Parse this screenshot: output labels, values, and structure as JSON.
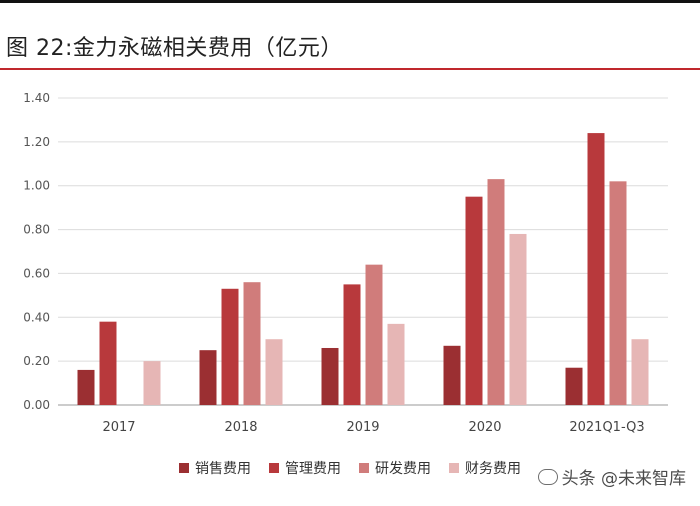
{
  "title": "图 22:金力永磁相关费用（亿元）",
  "watermark": "头条 @未来智库",
  "chart_data": {
    "type": "bar",
    "categories": [
      "2017",
      "2018",
      "2019",
      "2020",
      "2021Q1-Q3"
    ],
    "series": [
      {
        "name": "销售费用",
        "color": "#9b2f32",
        "values": [
          0.16,
          0.25,
          0.26,
          0.27,
          0.17
        ]
      },
      {
        "name": "管理费用",
        "color": "#b8393c",
        "values": [
          0.38,
          0.53,
          0.55,
          0.95,
          1.24
        ]
      },
      {
        "name": "研发费用",
        "color": "#d07c7b",
        "values": [
          0.0,
          0.56,
          0.64,
          1.03,
          1.02
        ]
      },
      {
        "name": "财务费用",
        "color": "#e6b6b5",
        "values": [
          0.2,
          0.3,
          0.37,
          0.78,
          0.3
        ]
      }
    ],
    "yticks": [
      "0.00",
      "0.20",
      "0.40",
      "0.60",
      "0.80",
      "1.00",
      "1.20",
      "1.40"
    ],
    "ylim": [
      0,
      1.4
    ],
    "grid": true,
    "legend": "bottom"
  }
}
